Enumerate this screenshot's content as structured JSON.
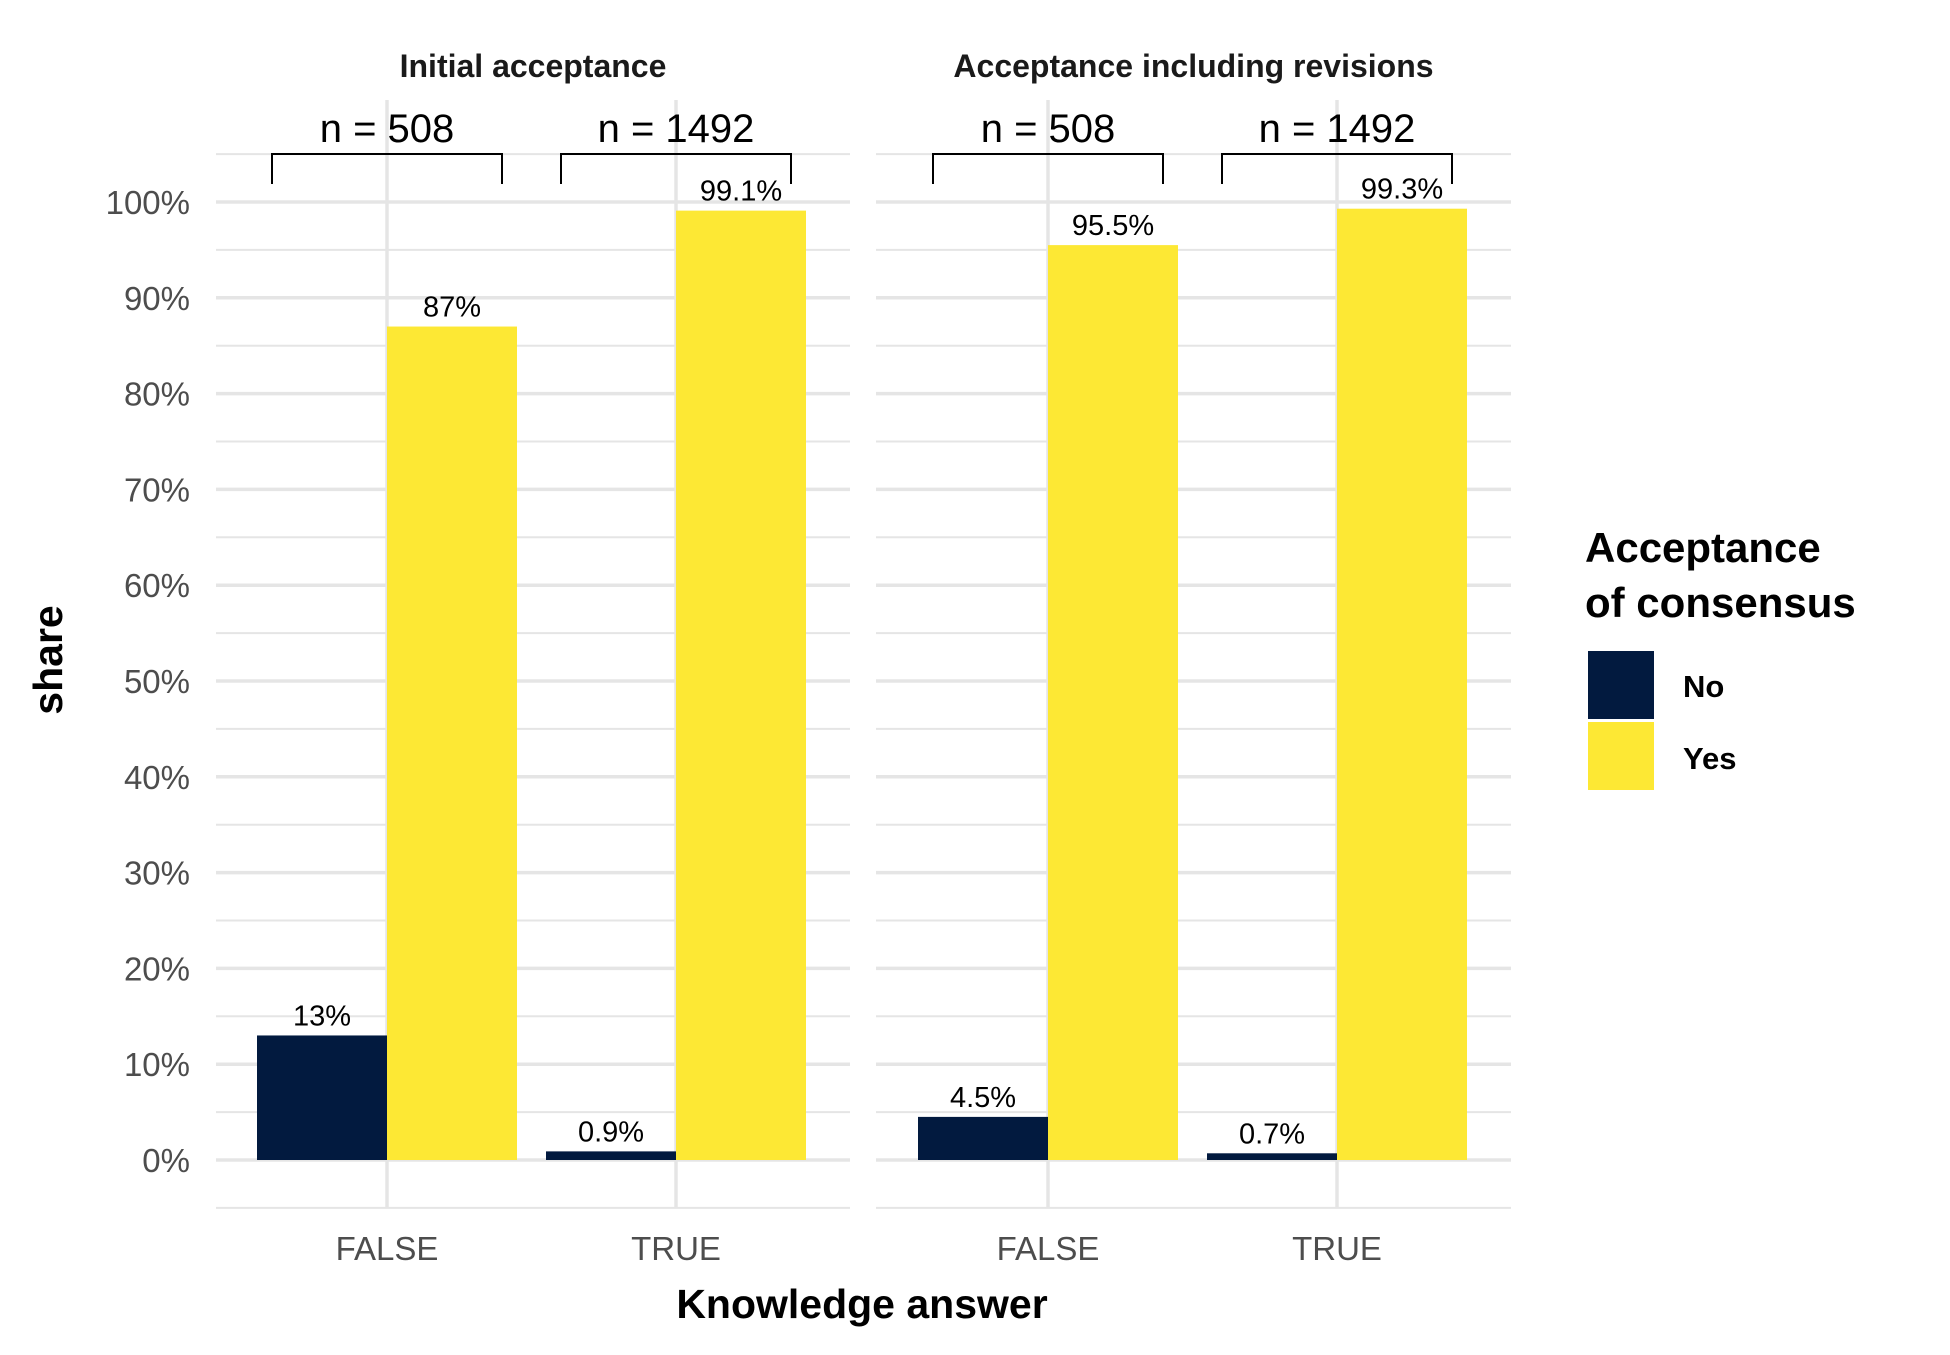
{
  "chart_data": {
    "type": "bar",
    "xlabel": "Knowledge answer",
    "ylabel": "share",
    "ylim": [
      0,
      100
    ],
    "y_ticks": [
      "0%",
      "10%",
      "20%",
      "30%",
      "40%",
      "50%",
      "60%",
      "70%",
      "80%",
      "90%",
      "100%"
    ],
    "categories": [
      "FALSE",
      "TRUE"
    ],
    "legend": {
      "title_lines": [
        "Acceptance",
        "of consensus"
      ],
      "position": "right",
      "entries": [
        {
          "label": "No",
          "color": "#021A3F"
        },
        {
          "label": "Yes",
          "color": "#FDE834"
        }
      ]
    },
    "panels": [
      {
        "title": "Initial acceptance",
        "groups": [
          {
            "category": "FALSE",
            "n_label": "n = 508",
            "values": [
              13,
              87
            ],
            "labels": [
              "13%",
              "87%"
            ]
          },
          {
            "category": "TRUE",
            "n_label": "n = 1492",
            "values": [
              0.9,
              99.1
            ],
            "labels": [
              "0.9%",
              "99.1%"
            ]
          }
        ]
      },
      {
        "title": "Acceptance including revisions",
        "groups": [
          {
            "category": "FALSE",
            "n_label": "n = 508",
            "values": [
              4.5,
              95.5
            ],
            "labels": [
              "4.5%",
              "95.5%"
            ]
          },
          {
            "category": "TRUE",
            "n_label": "n = 1492",
            "values": [
              0.7,
              99.3
            ],
            "labels": [
              "0.7%",
              "99.3%"
            ]
          }
        ]
      }
    ]
  }
}
